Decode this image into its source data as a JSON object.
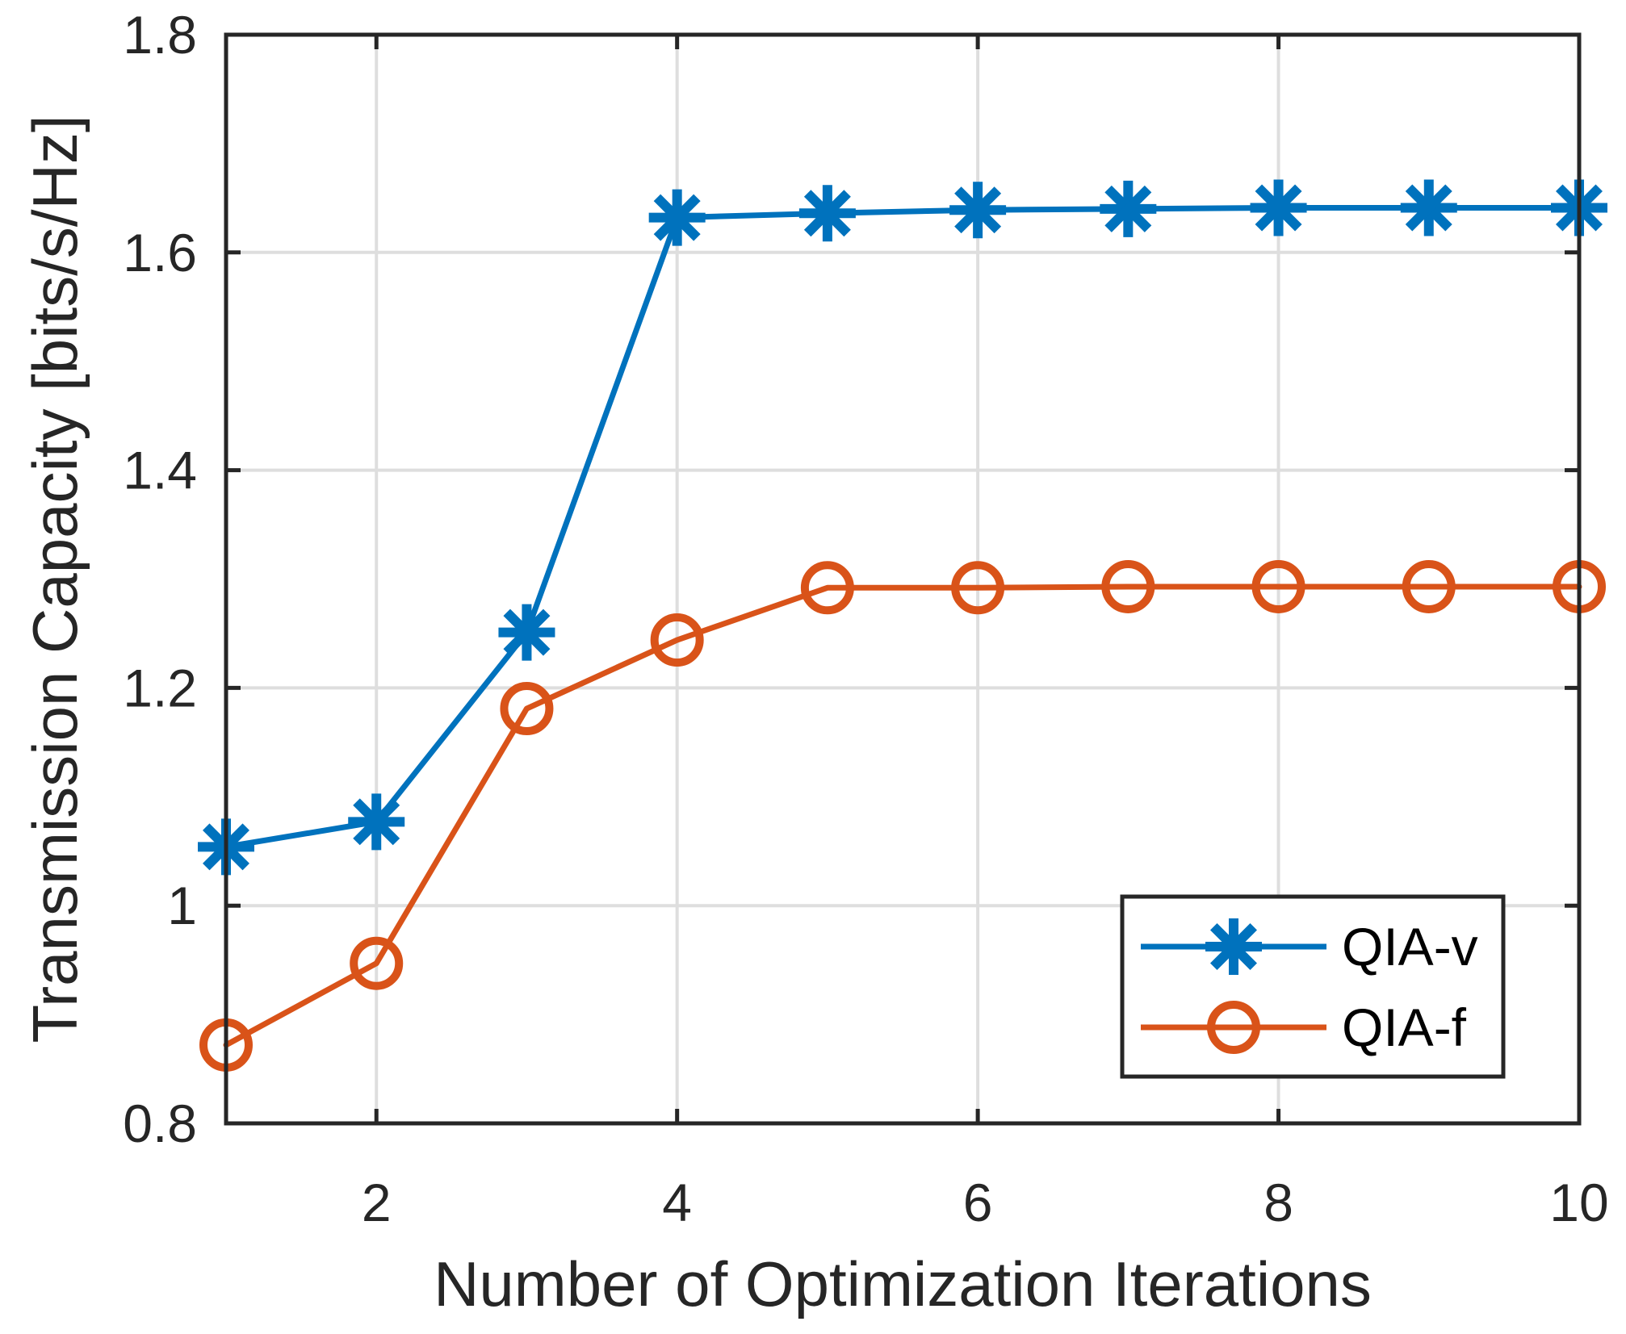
{
  "figure": {
    "background": "#FFFFFF"
  },
  "chart_data": {
    "type": "line",
    "title": "",
    "xlabel": "Number of Optimization Iterations",
    "ylabel": "Transmission Capacity [bits/s/Hz]",
    "x": [
      1,
      2,
      3,
      4,
      5,
      6,
      7,
      8,
      9,
      10
    ],
    "series": [
      {
        "name": "QIA-v",
        "color": "#0072BD",
        "marker": "asterisk",
        "values": [
          1.054,
          1.077,
          1.251,
          1.632,
          1.636,
          1.639,
          1.64,
          1.641,
          1.641,
          1.641
        ]
      },
      {
        "name": "QIA-f",
        "color": "#D95319",
        "marker": "circle",
        "values": [
          0.872,
          0.947,
          1.181,
          1.244,
          1.292,
          1.292,
          1.293,
          1.293,
          1.293,
          1.293
        ]
      }
    ],
    "xlim": [
      1,
      10
    ],
    "ylim": [
      0.8,
      1.8
    ],
    "xticks": [
      2,
      4,
      6,
      8,
      10
    ],
    "xticklabels": [
      "2",
      "4",
      "6",
      "8",
      "10"
    ],
    "yticks": [
      0.8,
      1.0,
      1.2,
      1.4,
      1.6,
      1.8
    ],
    "yticklabels": [
      "0.8",
      "1",
      "1.2",
      "1.4",
      "1.6",
      "1.8"
    ],
    "grid": true,
    "box": true,
    "tick_direction": "in",
    "legend": {
      "position": "lower-right-inside",
      "entries": [
        "QIA-v",
        "QIA-f"
      ]
    },
    "colors": {
      "axis": "#262626",
      "grid": "#DEDEDE",
      "legend_text": "#000000",
      "legend_background": "#FFFFFF"
    }
  }
}
